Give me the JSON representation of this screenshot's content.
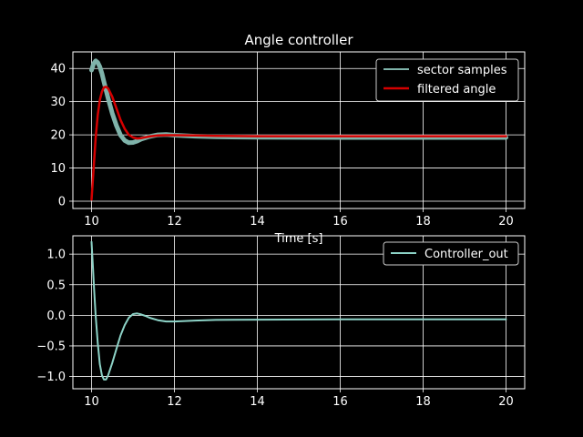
{
  "chart_data": [
    {
      "type": "line",
      "title": "Angle controller",
      "xlabel": "Time [s]",
      "ylabel": "",
      "xlim": [
        9.55,
        20.45
      ],
      "ylim": [
        -2.2,
        45
      ],
      "xticks": [
        10,
        12,
        14,
        16,
        18,
        20
      ],
      "yticks": [
        0,
        10,
        20,
        30,
        40
      ],
      "grid": true,
      "legend": "top-right",
      "series": [
        {
          "name": "sector samples",
          "color": "#7fb3aa",
          "x": [
            10.0,
            10.05,
            10.1,
            10.15,
            10.2,
            10.25,
            10.3,
            10.4,
            10.5,
            10.6,
            10.7,
            10.8,
            10.9,
            11.0,
            11.1,
            11.2,
            11.4,
            11.6,
            11.8,
            12.0,
            12.5,
            13,
            14,
            16,
            18,
            20
          ],
          "y": [
            39.5,
            41.5,
            42.3,
            41.8,
            40.5,
            38.5,
            36,
            31,
            26.5,
            22.8,
            19.9,
            18.3,
            17.6,
            17.7,
            18.1,
            18.7,
            19.5,
            20,
            20.1,
            19.9,
            19.6,
            19.4,
            19.3,
            19.2,
            19.2,
            19.2
          ]
        },
        {
          "name": "filtered angle",
          "color": "#d40000",
          "x": [
            10.0,
            10.05,
            10.1,
            10.15,
            10.2,
            10.25,
            10.3,
            10.35,
            10.4,
            10.5,
            10.6,
            10.7,
            10.8,
            10.9,
            11.0,
            11.1,
            11.2,
            11.4,
            11.6,
            11.8,
            12.0,
            12.5,
            13,
            14,
            16,
            18,
            20
          ],
          "y": [
            0.5,
            10,
            19,
            26,
            30.5,
            33,
            34.3,
            34.5,
            34,
            31.5,
            28,
            24.5,
            21.8,
            20,
            19.2,
            18.9,
            19,
            19.5,
            19.8,
            19.9,
            19.9,
            19.8,
            19.7,
            19.6,
            19.6,
            19.6,
            19.6
          ]
        }
      ]
    },
    {
      "type": "line",
      "title": "",
      "xlabel": "",
      "ylabel": "",
      "xlim": [
        9.55,
        20.45
      ],
      "ylim": [
        -1.2,
        1.3
      ],
      "xticks": [
        10,
        12,
        14,
        16,
        18,
        20
      ],
      "yticks": [
        -1.0,
        -0.5,
        0.0,
        0.5,
        1.0
      ],
      "ytick_labels": [
        "−1.0",
        "−0.5",
        "0.0",
        "0.5",
        "1.0"
      ],
      "grid": true,
      "legend": "top-right",
      "series": [
        {
          "name": "Controller_out",
          "color": "#8dd3c7",
          "x": [
            10.0,
            10.03,
            10.06,
            10.1,
            10.15,
            10.2,
            10.25,
            10.3,
            10.35,
            10.4,
            10.5,
            10.6,
            10.7,
            10.8,
            10.9,
            11.0,
            11.1,
            11.2,
            11.3,
            11.4,
            11.6,
            11.8,
            12.0,
            12.5,
            13,
            14,
            16,
            18,
            20
          ],
          "y": [
            1.2,
            0.85,
            0.45,
            0.0,
            -0.45,
            -0.8,
            -0.98,
            -1.05,
            -1.05,
            -0.98,
            -0.78,
            -0.55,
            -0.33,
            -0.16,
            -0.04,
            0.02,
            0.03,
            0.015,
            -0.01,
            -0.04,
            -0.08,
            -0.1,
            -0.1,
            -0.085,
            -0.075,
            -0.07,
            -0.065,
            -0.065,
            -0.065
          ]
        }
      ]
    }
  ]
}
